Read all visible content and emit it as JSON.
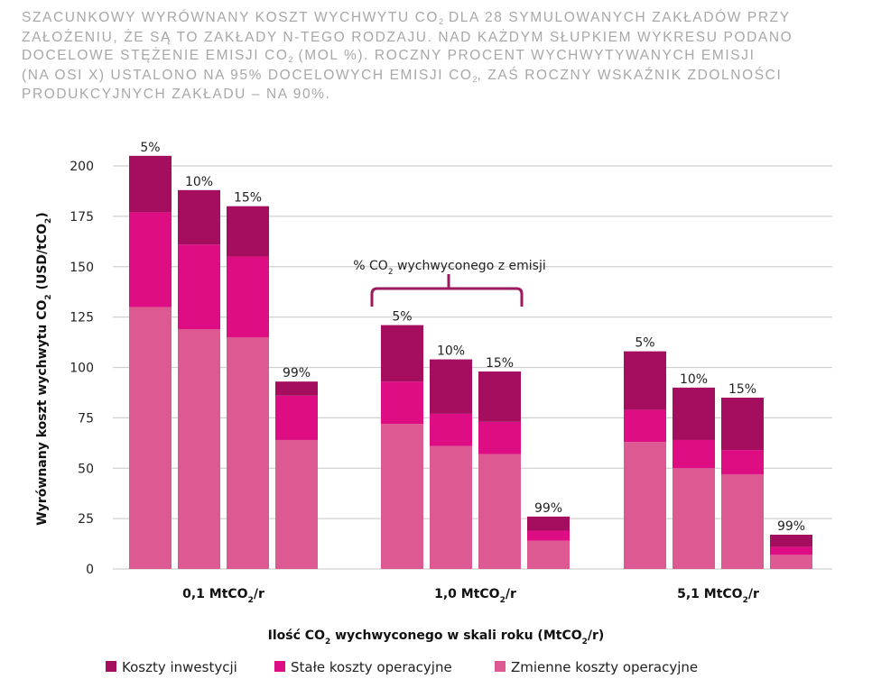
{
  "title_lines": [
    [
      "SZACUNKOWY WYRÓWNANY KOSZT WYCHWYTU CO",
      "2",
      " DLA 28 SYMULOWANYCH ZAKŁADÓW PRZY"
    ],
    [
      "ZAŁOŻENIU, ŻE SĄ TO ZAKŁADY N-TEGO RODZAJU. NAD KAŻDYM SŁUPKIEM WYKRESU PODANO"
    ],
    [
      "DOCELOWE STĘŻENIE EMISJI CO",
      "2",
      " (MOL %). ROCZNY PROCENT WYCHWYTYWANYCH EMISJI"
    ],
    [
      "(NA OSI X) USTALONO NA 95% DOCELOWYCH EMISJI CO",
      "2",
      ", ZAŚ ROCZNY WSKAŹNIK ZDOLNOŚCI"
    ],
    [
      "PRODUKCYJNYCH ZAKŁADU – NA 90%."
    ]
  ],
  "colors": {
    "inwestycji": "#a50d5f",
    "stale": "#de0d84",
    "zmienne": "#dc5a91",
    "grid": "#d0d0d0",
    "bracket": "#9b1b5e"
  },
  "chart_data": {
    "type": "bar",
    "stacked": true,
    "ylabel": [
      "Wyrównany koszt wychwytu CO",
      "2",
      " (USD/tCO",
      "2",
      ")"
    ],
    "xlabel": [
      "Ilość CO",
      "2",
      " wychwyconego w skali roku (MtCO",
      "2",
      "/r)"
    ],
    "ylim": [
      0,
      200
    ],
    "yticks": [
      0,
      25,
      50,
      75,
      100,
      125,
      150,
      175,
      200
    ],
    "grid": true,
    "legend_position": "bottom",
    "series_names": [
      "Koszty inwestycji",
      "Stałe koszty operacyjne",
      "Zmienne koszty operacyjne"
    ],
    "annotation": [
      "% CO",
      "2",
      " wychwyconego z emisji"
    ],
    "groups": [
      {
        "label": [
          "0,1 MtCO",
          "2",
          "/r"
        ],
        "bars": [
          {
            "label": "5%",
            "zmienne": 130,
            "stale": 47,
            "inwestycji": 28
          },
          {
            "label": "10%",
            "zmienne": 119,
            "stale": 42,
            "inwestycji": 27
          },
          {
            "label": "15%",
            "zmienne": 115,
            "stale": 40,
            "inwestycji": 25
          },
          {
            "label": "99%",
            "zmienne": 64,
            "stale": 22,
            "inwestycji": 7
          }
        ]
      },
      {
        "label": [
          "1,0 MtCO",
          "2",
          "/r"
        ],
        "bars": [
          {
            "label": "5%",
            "zmienne": 72,
            "stale": 21,
            "inwestycji": 28
          },
          {
            "label": "10%",
            "zmienne": 61,
            "stale": 16,
            "inwestycji": 27
          },
          {
            "label": "15%",
            "zmienne": 57,
            "stale": 16,
            "inwestycji": 25
          },
          {
            "label": "99%",
            "zmienne": 14,
            "stale": 5,
            "inwestycji": 7
          }
        ]
      },
      {
        "label": [
          "5,1 MtCO",
          "2",
          "/r"
        ],
        "bars": [
          {
            "label": "5%",
            "zmienne": 63,
            "stale": 16,
            "inwestycji": 29
          },
          {
            "label": "10%",
            "zmienne": 50,
            "stale": 14,
            "inwestycji": 26
          },
          {
            "label": "15%",
            "zmienne": 47,
            "stale": 12,
            "inwestycji": 26
          },
          {
            "label": "99%",
            "zmienne": 7,
            "stale": 4,
            "inwestycji": 6
          }
        ]
      }
    ]
  }
}
